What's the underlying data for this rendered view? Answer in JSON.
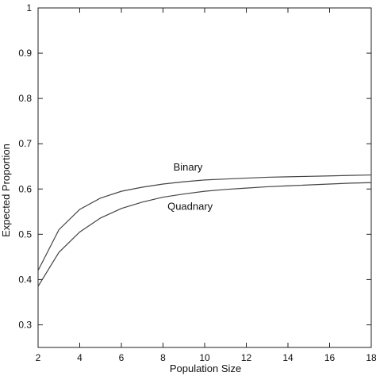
{
  "chart_data": {
    "type": "line",
    "title": "",
    "xlabel": "Population Size",
    "ylabel": "Expected Proportion",
    "xlim": [
      2,
      18
    ],
    "ylim": [
      0.25,
      1
    ],
    "xticks": [
      2,
      4,
      6,
      8,
      10,
      12,
      14,
      16,
      18
    ],
    "yticks": [
      0.3,
      0.4,
      0.5,
      0.6,
      0.7,
      0.8,
      0.9,
      1
    ],
    "ytick_labels": [
      "0.3",
      "0.4",
      "0.5",
      "0.6",
      "0.7",
      "0.8",
      "0.9",
      "1"
    ],
    "x": [
      2,
      3,
      4,
      5,
      6,
      7,
      8,
      9,
      10,
      11,
      12,
      13,
      14,
      15,
      16,
      17,
      18
    ],
    "series": [
      {
        "name": "Binary",
        "color": "#444444",
        "values": [
          0.42,
          0.51,
          0.555,
          0.58,
          0.595,
          0.604,
          0.611,
          0.616,
          0.62,
          0.622,
          0.624,
          0.626,
          0.627,
          0.628,
          0.629,
          0.63,
          0.631
        ]
      },
      {
        "name": "Quadnary",
        "color": "#444444",
        "values": [
          0.385,
          0.46,
          0.505,
          0.536,
          0.557,
          0.571,
          0.582,
          0.589,
          0.595,
          0.599,
          0.602,
          0.605,
          0.607,
          0.609,
          0.611,
          0.613,
          0.614
        ]
      }
    ],
    "grid": false,
    "legend": "inline labels"
  }
}
